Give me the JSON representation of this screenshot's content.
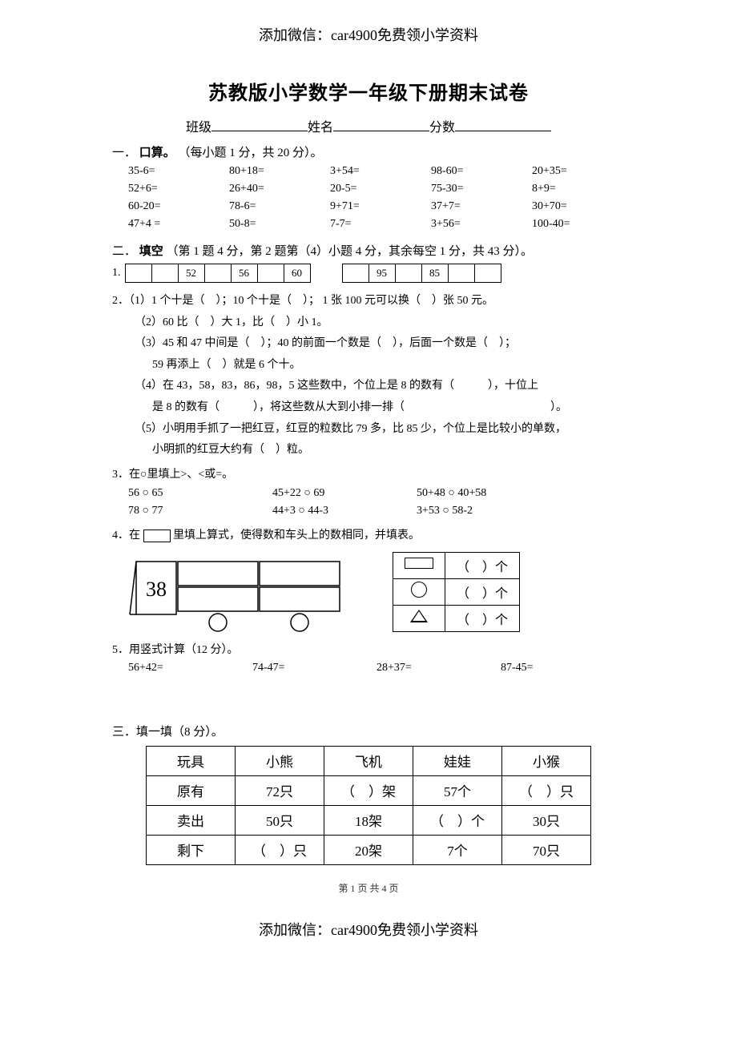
{
  "header_note": "添加微信：car4900免费领小学资料",
  "tiny_faded": "",
  "title": "苏教版小学数学一年级下册期末试卷",
  "info": {
    "class_label": "班级",
    "name_label": "姓名",
    "score_label": "分数"
  },
  "section1": {
    "head_prefix": "一．",
    "head_bold": "口算。",
    "head_note": "（每小题 1 分，共 20 分）。",
    "items": [
      "35-6=",
      "80+18=",
      "3+54=",
      "98-60=",
      "20+35=",
      "52+6=",
      "26+40=",
      "20-5=",
      "75-30=",
      "8+9=",
      "60-20=",
      "78-6=",
      "9+71=",
      "37+7=",
      "30+70=",
      "47+4 =",
      "50-8=",
      "7-7=",
      "3+56=",
      "100-40="
    ]
  },
  "section2": {
    "head_prefix": "二．",
    "head_bold": "填空",
    "head_note": "（第 1 题 4 分，第 2 题第（4）小题 4 分，其余每空 1 分，共 43 分）。",
    "q1_label": "1.",
    "boxrow1": [
      "",
      "",
      "52",
      "",
      "56",
      "",
      "60"
    ],
    "boxrow2": [
      "",
      "95",
      "",
      "85",
      "",
      ""
    ],
    "q2_lines": [
      "2．（1）1 个十是（　）；10 个十是（　）； 1 张 100 元可以换（　）张 50 元。",
      "（2）60 比（　）大 1，比（　）小 1。",
      "（3）45 和 47 中间是（　）；40 的前面一个数是（　），后面一个数是（　）；",
      "59 再添上（　）就是 6 个十。",
      "（4）在 43，58，83，86，98，5 这些数中，个位上是 8 的数有（　　　），十位上",
      "是 8 的数有（　　　），将这些数从大到小排一排（　　　　　　　　　　　　　）。",
      "（5）小明用手抓了一把红豆，红豆的粒数比 79 多，比 85 少，个位上是比较小的单数，",
      "小明抓的红豆大约有（　）粒。"
    ],
    "q3_head": "3．在○里填上>、<或=。",
    "q3_rows": [
      [
        "56  ○  65",
        "45+22  ○  69",
        "50+48  ○  40+58"
      ],
      [
        "78  ○  77",
        "44+3   ○  44-3",
        "3+53   ○  58-2"
      ]
    ],
    "q4_text_before": "4．在",
    "q4_text_after": "里填上算式，使得数和车头上的数相同，并填表。",
    "train_number": "38",
    "shape_count_label": "（　）个",
    "q5_head": "5．用竖式计算（12 分）。",
    "q5_items": [
      "56+42=",
      "74-47=",
      "28+37=",
      "87-45="
    ]
  },
  "section3": {
    "head": "三．填一填（8 分）。",
    "table": {
      "rows": [
        [
          "玩具",
          "小熊",
          "飞机",
          "娃娃",
          "小猴"
        ],
        [
          "原有",
          "72只",
          "（　）架",
          "57个",
          "（　）只"
        ],
        [
          "卖出",
          "50只",
          "18架",
          "（　）个",
          "30只"
        ],
        [
          "剩下",
          "（　）只",
          "20架",
          "7个",
          "70只"
        ]
      ]
    }
  },
  "footer_page": "第 1 页 共 4 页",
  "footer_note": "添加微信：car4900免费领小学资料"
}
